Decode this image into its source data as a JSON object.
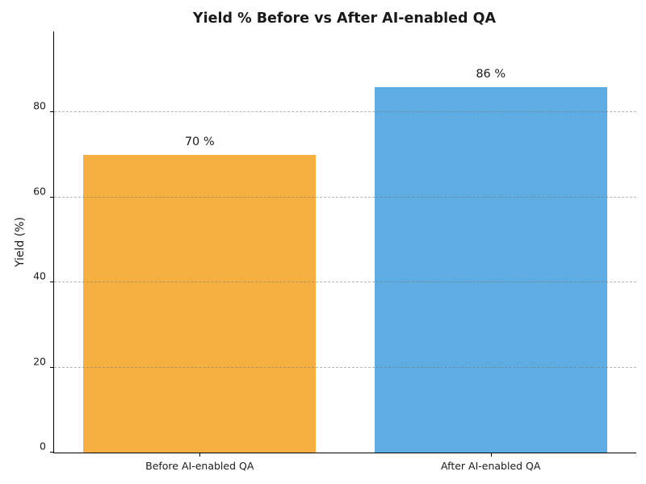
{
  "figure": {
    "background_color": "#ffffff",
    "text_color": "#1a1a1a"
  },
  "chart_data": {
    "type": "bar",
    "title": "Yield % Before vs After AI-enabled QA",
    "xlabel": "",
    "ylabel": "Yield (%)",
    "categories": [
      "Before AI-enabled QA",
      "After AI-enabled QA"
    ],
    "values": [
      70,
      86
    ],
    "bar_labels": [
      "70 %",
      "86 %"
    ],
    "bar_colors": [
      "#f5b041",
      "#5dade2"
    ],
    "ylim": [
      0,
      99
    ],
    "yticks": [
      0,
      20,
      40,
      60,
      80
    ],
    "bar_width_fraction": 0.8,
    "grid": "horizontal-dashed-over-bars",
    "grid_color": "#787878",
    "legend": "none",
    "spines": [
      "left",
      "bottom"
    ]
  }
}
